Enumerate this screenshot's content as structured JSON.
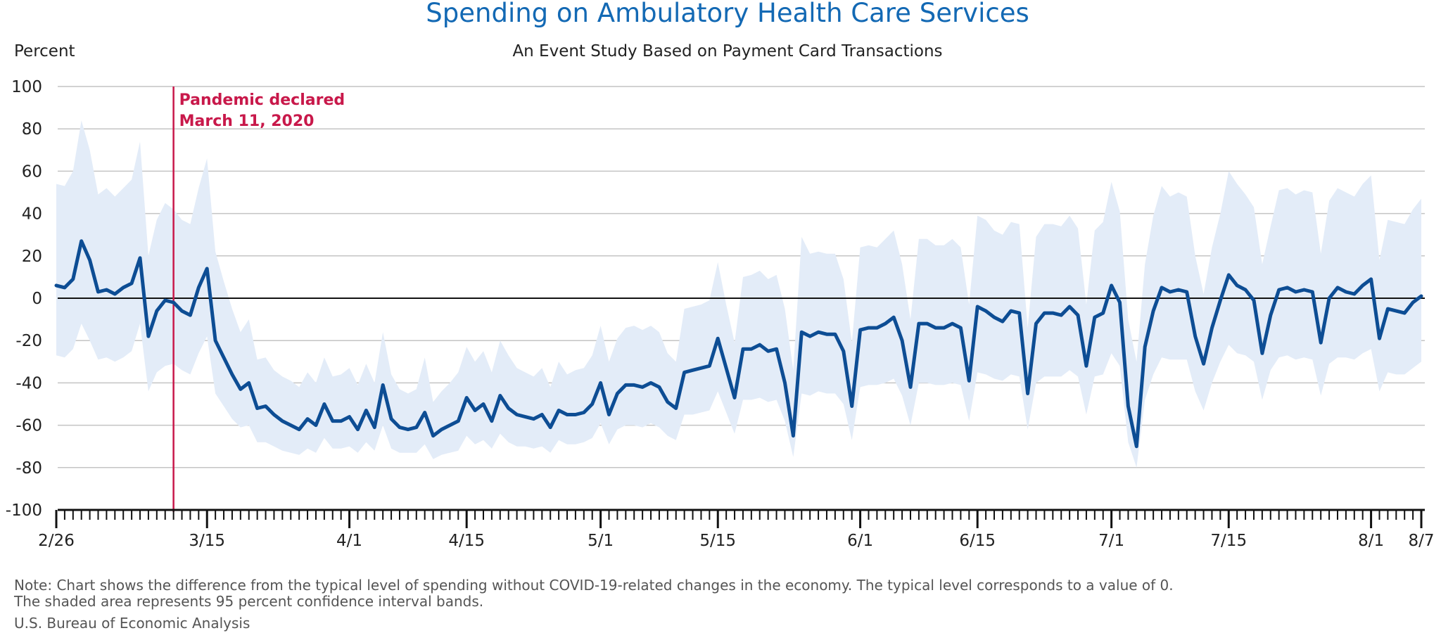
{
  "chart_data": {
    "type": "line",
    "title": "Spending on Ambulatory Health Care Services",
    "subtitle": "An Event Study Based on Payment Card Transactions",
    "ylabel": "Percent",
    "ylim": [
      -100,
      100
    ],
    "yticks": [
      100,
      80,
      60,
      40,
      20,
      0,
      -20,
      -40,
      -60,
      -80,
      -100
    ],
    "grid": true,
    "xrange": [
      0,
      162
    ],
    "xticks": [
      {
        "day": 0,
        "label": "2/26"
      },
      {
        "day": 18,
        "label": "3/15"
      },
      {
        "day": 35,
        "label": "4/1"
      },
      {
        "day": 49,
        "label": "4/15"
      },
      {
        "day": 65,
        "label": "5/1"
      },
      {
        "day": 79,
        "label": "5/15"
      },
      {
        "day": 96,
        "label": "6/1"
      },
      {
        "day": 110,
        "label": "6/15"
      },
      {
        "day": 126,
        "label": "7/1"
      },
      {
        "day": 140,
        "label": "7/15"
      },
      {
        "day": 157,
        "label": "8/1"
      },
      {
        "day": 163,
        "label": "8/7"
      }
    ],
    "annotation": {
      "day": 14,
      "line1": "Pandemic declared",
      "line2": "March 11, 2020"
    },
    "colors": {
      "line": "#0d4d94",
      "band": "#e3ecf8",
      "annotation": "#c8184a",
      "title": "#1369b4"
    },
    "series": [
      {
        "values": [
          6,
          5,
          9,
          27,
          18,
          3,
          4,
          2,
          5,
          7,
          19,
          -18,
          -6,
          -1,
          -2,
          -6,
          -8,
          5,
          14,
          -20,
          -28,
          -36,
          -43,
          -40,
          -52,
          -51,
          -55,
          -58,
          -60,
          -62,
          -57,
          -60,
          -50,
          -58,
          -58,
          -56,
          -62,
          -53,
          -61,
          -41,
          -57,
          -61,
          -62,
          -61,
          -54,
          -65,
          -62,
          -60,
          -58,
          -47,
          -53,
          -50,
          -58,
          -46,
          -52,
          -55,
          -56,
          -57,
          -55,
          -61,
          -53,
          -55,
          -55,
          -54,
          -50,
          -40,
          -55,
          -45,
          -41,
          -41,
          -42,
          -40,
          -42,
          -49,
          -52,
          -35,
          -34,
          -33,
          -32,
          -19,
          -33,
          -47,
          -24,
          -24,
          -22,
          -25,
          -24,
          -40,
          -65,
          -16,
          -18,
          -16,
          -17,
          -17,
          -25,
          -51,
          -15,
          -14,
          -14,
          -12,
          -9,
          -20,
          -42,
          -12,
          -12,
          -14,
          -14,
          -12,
          -14,
          -39,
          -4,
          -6,
          -9,
          -11,
          -6,
          -7,
          -45,
          -12,
          -7,
          -7,
          -8,
          -4,
          -8,
          -32,
          -9,
          -7,
          6,
          -2,
          -51,
          -70,
          -23,
          -6,
          5,
          3,
          4,
          3,
          -18,
          -31,
          -14,
          -1,
          11,
          6,
          4,
          -1,
          -26,
          -8,
          4,
          5,
          3,
          4,
          3,
          -21,
          0,
          5,
          3,
          2,
          6,
          9,
          -19,
          -5,
          -6,
          -7,
          -2,
          1
        ],
        "upper": [
          54,
          53,
          60,
          84,
          70,
          49,
          52,
          48,
          52,
          56,
          74,
          20,
          37,
          45,
          42,
          37,
          35,
          52,
          66,
          22,
          8,
          -5,
          -16,
          -10,
          -29,
          -28,
          -34,
          -37,
          -39,
          -42,
          -35,
          -40,
          -28,
          -37,
          -36,
          -33,
          -41,
          -31,
          -40,
          -16,
          -36,
          -43,
          -45,
          -43,
          -28,
          -49,
          -44,
          -40,
          -35,
          -23,
          -30,
          -25,
          -35,
          -20,
          -27,
          -33,
          -35,
          -37,
          -33,
          -42,
          -30,
          -36,
          -34,
          -33,
          -27,
          -13,
          -30,
          -19,
          -14,
          -13,
          -15,
          -13,
          -16,
          -26,
          -30,
          -5,
          -4,
          -3,
          -1,
          17,
          -3,
          -21,
          10,
          11,
          13,
          9,
          11,
          -5,
          -34,
          29,
          21,
          22,
          21,
          21,
          9,
          -21,
          24,
          25,
          24,
          28,
          32,
          16,
          -10,
          28,
          28,
          25,
          25,
          28,
          24,
          -3,
          39,
          37,
          32,
          30,
          36,
          35,
          -14,
          29,
          35,
          35,
          34,
          39,
          33,
          -3,
          32,
          36,
          55,
          41,
          -10,
          -30,
          16,
          39,
          53,
          48,
          50,
          48,
          20,
          2,
          24,
          40,
          60,
          54,
          49,
          43,
          16,
          34,
          51,
          52,
          49,
          51,
          50,
          21,
          46,
          52,
          50,
          48,
          54,
          58,
          18,
          37,
          36,
          35,
          42,
          47
        ],
        "lower": [
          -27,
          -28,
          -24,
          -12,
          -20,
          -29,
          -28,
          -30,
          -28,
          -25,
          -12,
          -44,
          -35,
          -32,
          -31,
          -34,
          -36,
          -26,
          -18,
          -45,
          -51,
          -57,
          -61,
          -60,
          -68,
          -68,
          -70,
          -72,
          -73,
          -74,
          -71,
          -73,
          -66,
          -71,
          -71,
          -70,
          -73,
          -68,
          -72,
          -60,
          -71,
          -73,
          -73,
          -73,
          -69,
          -76,
          -74,
          -73,
          -72,
          -65,
          -69,
          -67,
          -71,
          -64,
          -68,
          -70,
          -70,
          -71,
          -70,
          -73,
          -67,
          -69,
          -69,
          -68,
          -66,
          -59,
          -69,
          -62,
          -60,
          -60,
          -61,
          -59,
          -61,
          -65,
          -67,
          -55,
          -55,
          -54,
          -53,
          -44,
          -54,
          -64,
          -48,
          -48,
          -47,
          -49,
          -48,
          -58,
          -75,
          -45,
          -46,
          -44,
          -45,
          -45,
          -50,
          -67,
          -42,
          -41,
          -41,
          -40,
          -38,
          -46,
          -60,
          -40,
          -40,
          -41,
          -41,
          -40,
          -41,
          -58,
          -35,
          -36,
          -38,
          -39,
          -36,
          -37,
          -62,
          -40,
          -37,
          -37,
          -37,
          -34,
          -37,
          -55,
          -37,
          -36,
          -26,
          -32,
          -68,
          -80,
          -48,
          -36,
          -28,
          -29,
          -29,
          -29,
          -44,
          -53,
          -40,
          -30,
          -22,
          -26,
          -27,
          -30,
          -48,
          -34,
          -28,
          -27,
          -29,
          -28,
          -29,
          -46,
          -31,
          -28,
          -28,
          -29,
          -26,
          -24,
          -44,
          -35,
          -36,
          -36,
          -33,
          -30
        ]
      }
    ]
  },
  "note": {
    "line1": "Note: Chart shows the difference from the typical level of spending without COVID-19-related changes in the economy. The typical level corresponds to a value of 0.",
    "line2": "The shaded area represents 95 percent confidence interval bands."
  },
  "source": "U.S. Bureau of Economic Analysis"
}
